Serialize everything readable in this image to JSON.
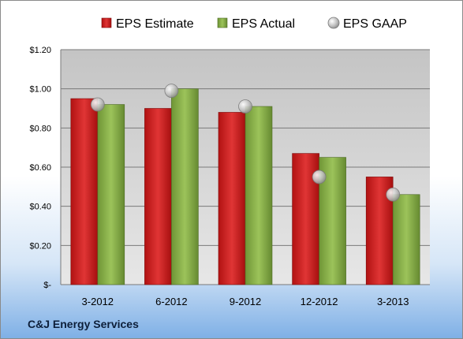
{
  "company": "C&J Energy Services",
  "chart_data": {
    "type": "bar",
    "title": "",
    "xlabel": "",
    "ylabel": "",
    "categories": [
      "3-2012",
      "6-2012",
      "9-2012",
      "12-2012",
      "3-2013"
    ],
    "series": [
      {
        "name": "EPS Estimate",
        "kind": "bar",
        "values": [
          0.95,
          0.9,
          0.88,
          0.67,
          0.55
        ],
        "color": "#cc2020"
      },
      {
        "name": "EPS Actual",
        "kind": "bar",
        "values": [
          0.92,
          1.0,
          0.91,
          0.65,
          0.46
        ],
        "color": "#8ab04a"
      },
      {
        "name": "EPS GAAP",
        "kind": "marker",
        "values": [
          0.92,
          0.99,
          0.91,
          0.55,
          0.46
        ],
        "color": "#b8b8b8"
      }
    ],
    "ylim": [
      0,
      1.2
    ],
    "yticks": [
      0,
      0.2,
      0.4,
      0.6,
      0.8,
      1.0,
      1.2
    ],
    "ytick_labels": [
      "$-",
      "$0.20",
      "$0.40",
      "$0.60",
      "$0.80",
      "$1.00",
      "$1.20"
    ],
    "grid": true,
    "legend_position": "top"
  }
}
